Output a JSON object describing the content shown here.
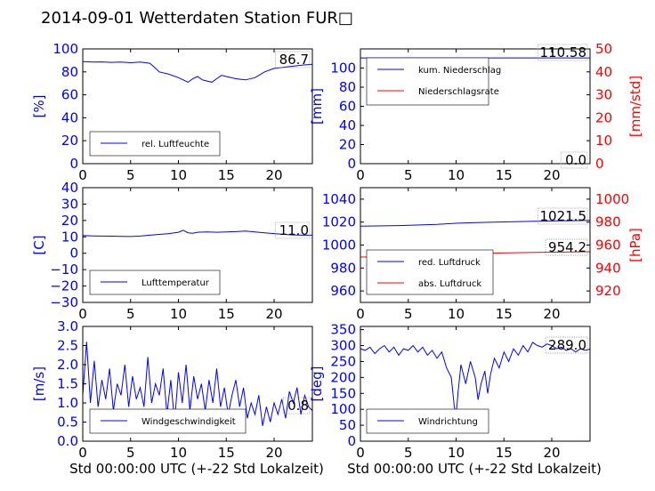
{
  "title": "2014-09-01 Wetterdaten Station FUR□",
  "xlabel": "Std 00:00:00 UTC (+-22 Std Lokalzeit)",
  "chart_data": [
    {
      "type": "line",
      "ylabel": "[%]",
      "xlim": [
        0,
        24
      ],
      "ylim": [
        0,
        100
      ],
      "xticks": [
        "0",
        "5",
        "10",
        "15",
        "20"
      ],
      "yticks": [
        "0",
        "20",
        "40",
        "60",
        "80",
        "100"
      ],
      "legend": [
        {
          "name": "rel. Luftfeuchte",
          "color": "#0000ff"
        }
      ],
      "legend_position": "lower-left",
      "last_value": "86.7",
      "series": [
        {
          "name": "rel. Luftfeuchte",
          "color": "#0000ff",
          "x": [
            0,
            1,
            2,
            3,
            4,
            5,
            6,
            7,
            7.5,
            8,
            9,
            10,
            10.5,
            11,
            11.5,
            12,
            12.5,
            13,
            13.5,
            14,
            14.5,
            15,
            16,
            17,
            18,
            19,
            20,
            21,
            22,
            23,
            24
          ],
          "y": [
            89,
            88.5,
            88.7,
            88.3,
            88.6,
            88,
            88.5,
            87.5,
            84,
            80,
            78,
            75,
            73,
            71,
            74,
            76,
            73,
            72,
            71,
            74,
            77,
            76,
            74,
            73,
            75,
            80,
            83,
            84,
            85,
            86,
            86.7
          ]
        }
      ]
    },
    {
      "type": "line",
      "ylabel": "[mm]",
      "ylabel_right": "[mm/std]",
      "xlim": [
        0,
        24
      ],
      "ylim": [
        0,
        120
      ],
      "ylim_right": [
        0,
        50
      ],
      "xticks": [
        "0",
        "5",
        "10",
        "15",
        "20"
      ],
      "yticks": [
        "0",
        "20",
        "40",
        "60",
        "80",
        "100"
      ],
      "yticks_right": [
        "0",
        "10",
        "20",
        "30",
        "40",
        "50"
      ],
      "legend": [
        {
          "name": "kum. Niederschlag",
          "color": "#0000ff"
        },
        {
          "name": "Niederschlagsrate",
          "color": "#ff0000"
        }
      ],
      "legend_position": "upper-left",
      "last_value": "110.58",
      "last_value_right": "0.0",
      "series": [
        {
          "name": "kum. Niederschlag",
          "color": "#0000ff",
          "axis": "left",
          "x": [
            0,
            24
          ],
          "y": [
            110.58,
            110.58
          ]
        },
        {
          "name": "Niederschlagsrate",
          "color": "#ff0000",
          "axis": "right",
          "x": [
            0,
            24
          ],
          "y": [
            0,
            0
          ]
        }
      ]
    },
    {
      "type": "line",
      "ylabel": "[C]",
      "xlim": [
        0,
        24
      ],
      "ylim": [
        -30,
        40
      ],
      "xticks": [
        "0",
        "5",
        "10",
        "15",
        "20"
      ],
      "yticks": [
        "−30",
        "−20",
        "−10",
        "0",
        "10",
        "20",
        "30",
        "40"
      ],
      "legend": [
        {
          "name": "Lufttemperatur",
          "color": "#0000ff"
        }
      ],
      "legend_position": "lower-left",
      "last_value": "11.0",
      "series": [
        {
          "name": "Lufttemperatur",
          "color": "#0000ff",
          "x": [
            0,
            1,
            2,
            3,
            4,
            5,
            6,
            7,
            8,
            9,
            10,
            10.5,
            11,
            11.5,
            12,
            13,
            14,
            15,
            16,
            17,
            18,
            19,
            20,
            21,
            22,
            23,
            24
          ],
          "y": [
            10.8,
            10.6,
            10.5,
            10.4,
            10.3,
            10.2,
            10.5,
            11,
            11.5,
            12,
            12.8,
            14,
            12.5,
            12.2,
            12.8,
            13,
            12.8,
            13,
            13.2,
            13.5,
            13,
            12.5,
            12,
            11.5,
            11.2,
            11,
            11
          ]
        }
      ]
    },
    {
      "type": "line",
      "ylabel_right": "[hPa]",
      "xlim": [
        0,
        24
      ],
      "ylim": [
        950,
        1050
      ],
      "ylim_right": [
        910,
        1010
      ],
      "xticks": [
        "0",
        "5",
        "10",
        "15",
        "20"
      ],
      "yticks": [
        "960",
        "980",
        "1000",
        "1020",
        "1040"
      ],
      "yticks_right": [
        "920",
        "940",
        "960",
        "980",
        "1000"
      ],
      "legend": [
        {
          "name": "red. Luftdruck",
          "color": "#0000ff"
        },
        {
          "name": "abs. Luftdruck",
          "color": "#ff0000"
        }
      ],
      "legend_position": "lower-left",
      "last_value": "1021.5",
      "last_value_right": "954.2",
      "series": [
        {
          "name": "red. Luftdruck",
          "color": "#0000ff",
          "axis": "left",
          "x": [
            0,
            4,
            8,
            10,
            12,
            16,
            20,
            24
          ],
          "y": [
            1016.5,
            1017,
            1018,
            1019,
            1019.6,
            1020.3,
            1021,
            1021.5
          ]
        },
        {
          "name": "abs. Luftdruck",
          "color": "#ff0000",
          "axis": "right",
          "x": [
            0,
            4,
            8,
            10,
            12,
            16,
            20,
            24
          ],
          "y": [
            949.5,
            950,
            951,
            952,
            952.6,
            953.3,
            953.8,
            954.2
          ]
        }
      ]
    },
    {
      "type": "line",
      "ylabel": "[m/s]",
      "xlim": [
        0,
        24
      ],
      "ylim": [
        0,
        3.0
      ],
      "xticks": [
        "0",
        "5",
        "10",
        "15",
        "20"
      ],
      "yticks": [
        "0.0",
        "0.5",
        "1.0",
        "1.5",
        "2.0",
        "2.5",
        "3.0"
      ],
      "legend": [
        {
          "name": "Windgeschwindigkeit",
          "color": "#0000ff"
        }
      ],
      "legend_position": "lower-left",
      "last_value": "0.8",
      "series": [
        {
          "name": "Windgeschwindigkeit",
          "color": "#0000ff",
          "x": [
            0,
            0.4,
            0.8,
            1.2,
            1.6,
            2,
            2.4,
            2.8,
            3.2,
            3.6,
            4,
            4.4,
            4.8,
            5.2,
            5.6,
            6,
            6.4,
            6.8,
            7.2,
            7.6,
            8,
            8.4,
            8.8,
            9.2,
            9.6,
            10,
            10.4,
            10.8,
            11.2,
            11.6,
            12,
            12.4,
            12.8,
            13.2,
            13.6,
            14,
            14.4,
            14.8,
            15.2,
            15.6,
            16,
            16.4,
            16.8,
            17.2,
            17.6,
            18,
            18.4,
            18.8,
            19.2,
            19.6,
            20,
            20.4,
            20.8,
            21.2,
            21.6,
            22,
            22.4,
            22.8,
            23.2,
            23.6,
            24
          ],
          "y": [
            1.2,
            2.6,
            1.0,
            2.1,
            0.9,
            1.6,
            1.1,
            1.9,
            0.8,
            1.5,
            1.2,
            2.0,
            0.9,
            1.7,
            1.1,
            1.4,
            0.9,
            2.2,
            1.0,
            1.5,
            1.2,
            1.9,
            0.7,
            1.6,
            0.5,
            1.8,
            1.0,
            2.0,
            0.8,
            1.7,
            1.1,
            1.5,
            0.8,
            1.6,
            1.0,
            1.9,
            0.9,
            1.4,
            0.7,
            1.2,
            1.6,
            0.9,
            1.4,
            0.6,
            1.0,
            0.7,
            1.2,
            0.4,
            0.9,
            0.5,
            1.0,
            0.7,
            1.1,
            0.6,
            1.3,
            1.0,
            1.4,
            0.7,
            1.2,
            0.9,
            0.8
          ]
        }
      ]
    },
    {
      "type": "line",
      "ylabel": "[deg]",
      "xlim": [
        0,
        24
      ],
      "ylim": [
        0,
        360
      ],
      "xticks": [
        "0",
        "5",
        "10",
        "15",
        "20"
      ],
      "yticks": [
        "0",
        "50",
        "100",
        "150",
        "200",
        "250",
        "300",
        "350"
      ],
      "legend": [
        {
          "name": "Windrichtung",
          "color": "#0000ff"
        }
      ],
      "legend_position": "lower-left",
      "last_value": "289.0",
      "series": [
        {
          "name": "Windrichtung",
          "color": "#0000ff",
          "x": [
            0,
            0.5,
            1,
            1.5,
            2,
            2.5,
            3,
            3.5,
            4,
            4.5,
            5,
            5.5,
            6,
            6.5,
            7,
            7.5,
            8,
            8.5,
            9,
            9.5,
            9.8,
            10,
            10.2,
            10.5,
            11,
            11.5,
            12,
            12.3,
            12.6,
            13,
            13.3,
            13.6,
            14,
            14.5,
            15,
            15.5,
            16,
            16.5,
            17,
            17.5,
            18,
            18.5,
            19,
            19.5,
            20,
            20.5,
            21,
            21.5,
            22,
            22.5,
            23,
            23.5,
            24
          ],
          "y": [
            290,
            285,
            295,
            275,
            290,
            300,
            280,
            295,
            270,
            290,
            285,
            300,
            280,
            295,
            270,
            285,
            260,
            280,
            230,
            200,
            110,
            80,
            150,
            240,
            180,
            250,
            200,
            130,
            180,
            220,
            150,
            210,
            260,
            230,
            280,
            250,
            290,
            270,
            300,
            280,
            310,
            300,
            295,
            305,
            300,
            290,
            295,
            285,
            290,
            280,
            290,
            285,
            289
          ]
        }
      ]
    }
  ]
}
